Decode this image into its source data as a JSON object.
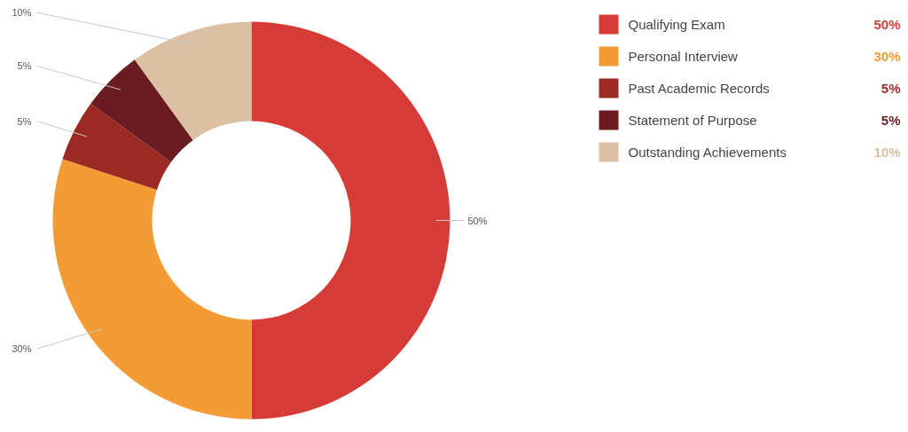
{
  "chart_data": {
    "type": "donut",
    "categories": [
      "Qualifying Exam",
      "Personal Interview",
      "Past Academic Records",
      "Statement of Purpose",
      "Outstanding Achievements"
    ],
    "values": [
      50,
      30,
      5,
      5,
      10
    ],
    "colors": [
      "#d63b37",
      "#f39c35",
      "#9c2a24",
      "#6b1c22",
      "#dcc0a3"
    ],
    "value_labels": [
      "50%",
      "30%",
      "5%",
      "5%",
      "10%"
    ],
    "legend": "right"
  }
}
